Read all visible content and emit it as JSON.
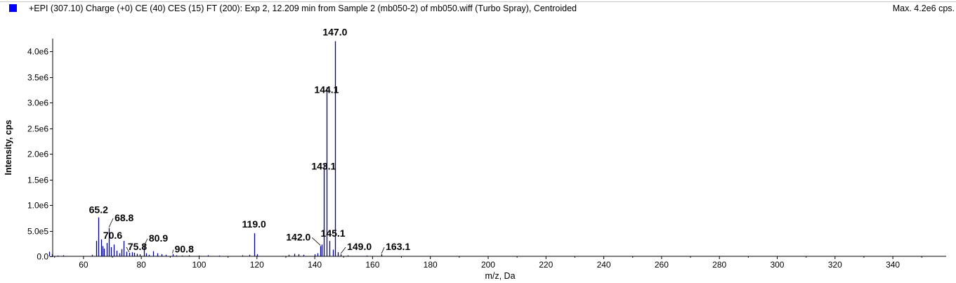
{
  "header": {
    "title": "+EPI (307.10) Charge (+0) CE (40) CES (15) FT (200): Exp 2, 12.209 min from Sample 2 (mb050-2) of mb050.wiff (Turbo Spray), Centroided",
    "max_label": "Max. 4.2e6 cps."
  },
  "colors": {
    "series": "#00008b",
    "swatch": "#0000ff"
  },
  "chart_data": {
    "type": "bar",
    "xlabel": "m/z, Da",
    "ylabel": "Intensity, cps",
    "xlim": [
      48,
      358
    ],
    "ylim": [
      0,
      4250000
    ],
    "x_ticks": [
      60,
      80,
      100,
      120,
      140,
      160,
      180,
      200,
      220,
      240,
      260,
      280,
      300,
      320,
      340
    ],
    "x_tick_labels": [
      "60",
      "80",
      "100",
      "120",
      "140",
      "160",
      "180",
      "200",
      "220",
      "240",
      "260",
      "280",
      "300",
      "320",
      "340"
    ],
    "y_ticks": [
      0,
      500000,
      1000000,
      1500000,
      2000000,
      2500000,
      3000000,
      3500000,
      4000000
    ],
    "y_tick_labels": [
      "0.0",
      "5.0e5",
      "1.0e6",
      "1.5e6",
      "2.0e6",
      "2.5e6",
      "3.0e6",
      "3.5e6",
      "4.0e6"
    ],
    "grid": false,
    "peaks": [
      {
        "mz": 48.2,
        "intensity": 90000
      },
      {
        "mz": 49.0,
        "intensity": 40000
      },
      {
        "mz": 51.0,
        "intensity": 15000
      },
      {
        "mz": 53.0,
        "intensity": 20000
      },
      {
        "mz": 63.0,
        "intensity": 30000
      },
      {
        "mz": 64.5,
        "intensity": 300000
      },
      {
        "mz": 65.2,
        "intensity": 760000
      },
      {
        "mz": 66.0,
        "intensity": 330000
      },
      {
        "mz": 66.5,
        "intensity": 200000
      },
      {
        "mz": 67.0,
        "intensity": 150000
      },
      {
        "mz": 68.0,
        "intensity": 260000
      },
      {
        "mz": 68.8,
        "intensity": 550000
      },
      {
        "mz": 69.5,
        "intensity": 180000
      },
      {
        "mz": 70.6,
        "intensity": 230000
      },
      {
        "mz": 71.5,
        "intensity": 110000
      },
      {
        "mz": 72.5,
        "intensity": 60000
      },
      {
        "mz": 73.2,
        "intensity": 140000
      },
      {
        "mz": 74.0,
        "intensity": 300000
      },
      {
        "mz": 74.8,
        "intensity": 90000
      },
      {
        "mz": 75.8,
        "intensity": 70000
      },
      {
        "mz": 76.8,
        "intensity": 80000
      },
      {
        "mz": 77.5,
        "intensity": 70000
      },
      {
        "mz": 78.5,
        "intensity": 50000
      },
      {
        "mz": 79.5,
        "intensity": 40000
      },
      {
        "mz": 80.9,
        "intensity": 180000
      },
      {
        "mz": 81.7,
        "intensity": 60000
      },
      {
        "mz": 82.7,
        "intensity": 30000
      },
      {
        "mz": 84.0,
        "intensity": 100000
      },
      {
        "mz": 85.5,
        "intensity": 60000
      },
      {
        "mz": 87.0,
        "intensity": 40000
      },
      {
        "mz": 88.5,
        "intensity": 30000
      },
      {
        "mz": 90.8,
        "intensity": 45000
      },
      {
        "mz": 92.0,
        "intensity": 20000
      },
      {
        "mz": 94.0,
        "intensity": 15000
      },
      {
        "mz": 96.5,
        "intensity": 20000
      },
      {
        "mz": 100.0,
        "intensity": 15000
      },
      {
        "mz": 103.0,
        "intensity": 20000
      },
      {
        "mz": 107.0,
        "intensity": 15000
      },
      {
        "mz": 115.0,
        "intensity": 20000
      },
      {
        "mz": 117.5,
        "intensity": 30000
      },
      {
        "mz": 119.0,
        "intensity": 450000
      },
      {
        "mz": 120.0,
        "intensity": 40000
      },
      {
        "mz": 131.0,
        "intensity": 30000
      },
      {
        "mz": 133.0,
        "intensity": 50000
      },
      {
        "mz": 134.5,
        "intensity": 40000
      },
      {
        "mz": 136.0,
        "intensity": 30000
      },
      {
        "mz": 140.0,
        "intensity": 40000
      },
      {
        "mz": 141.0,
        "intensity": 60000
      },
      {
        "mz": 142.0,
        "intensity": 200000
      },
      {
        "mz": 142.5,
        "intensity": 230000
      },
      {
        "mz": 143.1,
        "intensity": 1800000
      },
      {
        "mz": 144.1,
        "intensity": 3300000
      },
      {
        "mz": 145.1,
        "intensity": 300000
      },
      {
        "mz": 146.2,
        "intensity": 130000
      },
      {
        "mz": 147.0,
        "intensity": 4200000
      },
      {
        "mz": 148.0,
        "intensity": 80000
      },
      {
        "mz": 149.0,
        "intensity": 40000
      },
      {
        "mz": 151.5,
        "intensity": 20000
      },
      {
        "mz": 158.0,
        "intensity": 15000
      },
      {
        "mz": 163.1,
        "intensity": 40000
      }
    ],
    "peak_labels": [
      {
        "mz": 65.2,
        "intensity": 760000,
        "text": "65.2"
      },
      {
        "mz": 68.8,
        "intensity": 550000,
        "text": "68.8"
      },
      {
        "mz": 70.6,
        "intensity": 230000,
        "text": "70.6"
      },
      {
        "mz": 75.8,
        "intensity": 70000,
        "text": "75.8"
      },
      {
        "mz": 80.9,
        "intensity": 180000,
        "text": "80.9"
      },
      {
        "mz": 90.8,
        "intensity": 45000,
        "text": "90.8"
      },
      {
        "mz": 119.0,
        "intensity": 450000,
        "text": "119.0"
      },
      {
        "mz": 142.0,
        "intensity": 200000,
        "text": "142.0"
      },
      {
        "mz": 143.1,
        "intensity": 1800000,
        "text": "143.1"
      },
      {
        "mz": 144.1,
        "intensity": 3300000,
        "text": "144.1"
      },
      {
        "mz": 145.1,
        "intensity": 300000,
        "text": "145.1"
      },
      {
        "mz": 147.0,
        "intensity": 4200000,
        "text": "147.0"
      },
      {
        "mz": 149.0,
        "intensity": 40000,
        "text": "149.0"
      },
      {
        "mz": 163.1,
        "intensity": 40000,
        "text": "163.1"
      }
    ]
  }
}
